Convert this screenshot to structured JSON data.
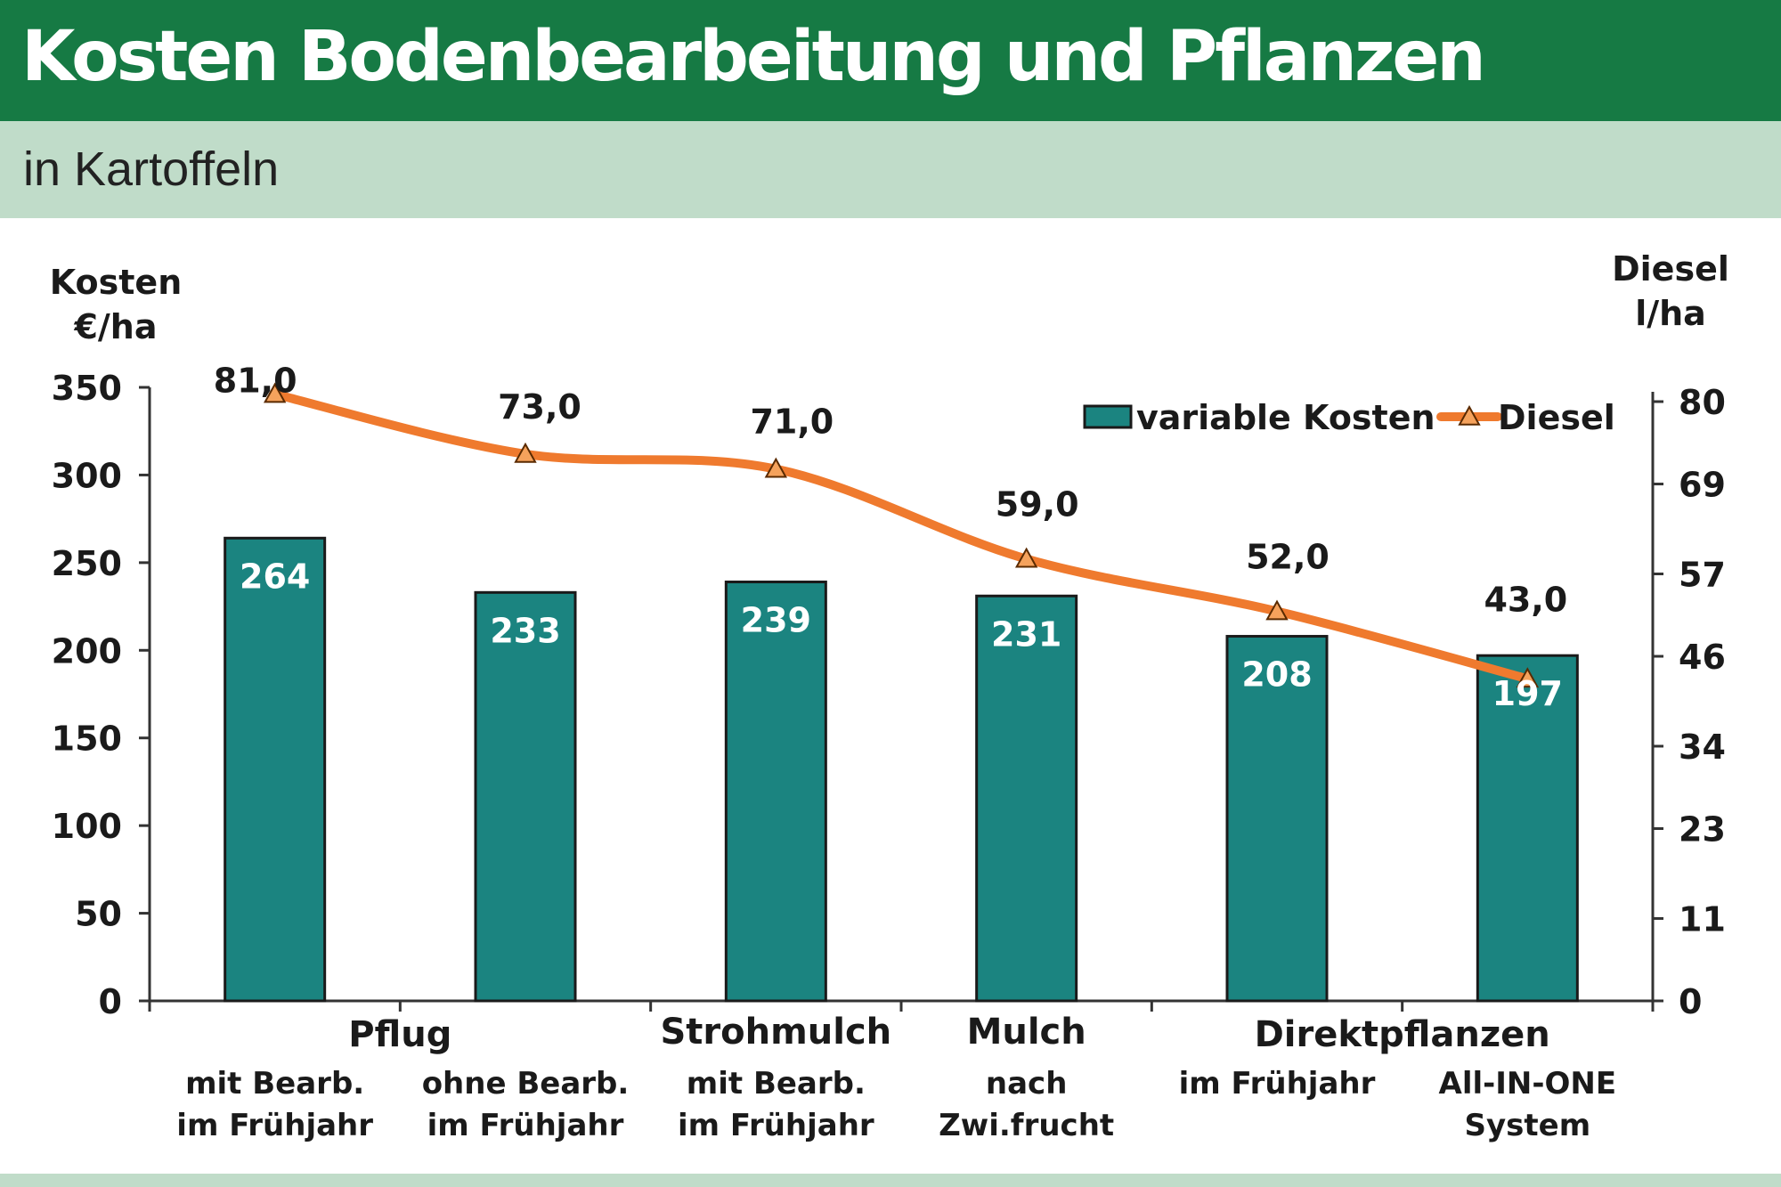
{
  "header": {
    "title": "Kosten Bodenbearbeitung und Pflanzen",
    "subtitle": "in Kartoffeln"
  },
  "colors": {
    "header_bg": "#167a44",
    "subheader_bg": "#c0dcc9",
    "bar": "#1b8480",
    "line": "#ef7a2e"
  },
  "chart_data": {
    "type": "bar",
    "title": "Kosten Bodenbearbeitung und Pflanzen",
    "subtitle": "in Kartoffeln",
    "y_left_label": [
      "Kosten",
      "€/ha"
    ],
    "y_right_label": [
      "Diesel",
      "l/ha"
    ],
    "y_left_ticks": [
      0,
      50,
      100,
      150,
      200,
      250,
      300,
      350
    ],
    "y_left_lim": [
      0,
      350
    ],
    "y_right_ticks": [
      "0",
      "11",
      "23",
      "34",
      "46",
      "57",
      "69",
      "80"
    ],
    "y_right_lim": [
      0,
      80
    ],
    "groups": [
      {
        "label": "Pflug",
        "span": [
          0,
          1
        ]
      },
      {
        "label": "Strohmulch",
        "span": [
          2,
          2
        ]
      },
      {
        "label": "Mulch",
        "span": [
          3,
          3
        ]
      },
      {
        "label": "Direktpflanzen",
        "span": [
          4,
          5
        ]
      }
    ],
    "categories": [
      [
        "mit Bearb.",
        "im Frühjahr"
      ],
      [
        "ohne Bearb.",
        "im Frühjahr"
      ],
      [
        "mit Bearb.",
        "im Frühjahr"
      ],
      [
        "nach",
        "Zwi.frucht"
      ],
      [
        "im Frühjahr",
        ""
      ],
      [
        "All-IN-ONE",
        "System"
      ]
    ],
    "series": [
      {
        "name": "variable Kosten",
        "type": "bar",
        "axis": "left",
        "values": [
          264,
          233,
          239,
          231,
          208,
          197
        ],
        "labels": [
          "264",
          "233",
          "239",
          "231",
          "208",
          "197"
        ]
      },
      {
        "name": "Diesel",
        "type": "line",
        "axis": "right",
        "marker": "triangle",
        "values": [
          81.0,
          73.0,
          71.0,
          59.0,
          52.0,
          43.0
        ],
        "labels": [
          "81,0",
          "73,0",
          "71,0",
          "59,0",
          "52,0",
          "43,0"
        ]
      }
    ],
    "legend": "top-right",
    "grid": false
  }
}
